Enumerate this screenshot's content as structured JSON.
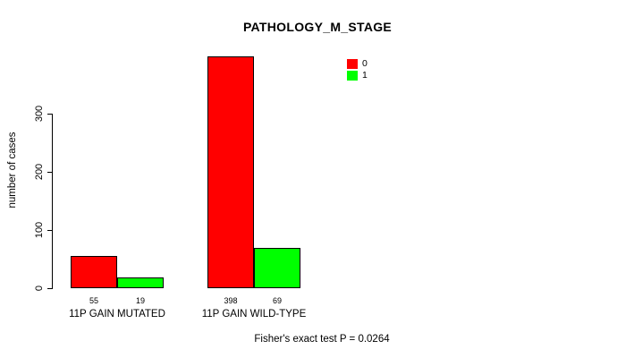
{
  "chart_data": {
    "type": "bar",
    "title": "PATHOLOGY_M_STAGE",
    "categories": [
      "11P GAIN MUTATED",
      "11P GAIN WILD-TYPE"
    ],
    "series": [
      {
        "name": "0",
        "color": "#ff0000",
        "values": [
          55,
          398
        ]
      },
      {
        "name": "1",
        "color": "#00ff00",
        "values": [
          19,
          69
        ]
      }
    ],
    "xlabel": "",
    "ylabel": "number of cases",
    "ylim": [
      0,
      300
    ],
    "yticks": [
      0,
      100,
      200,
      300
    ],
    "bar_count_labels": [
      [
        55,
        398
      ],
      [
        19,
        69
      ]
    ],
    "legend_position": "top-right",
    "grid": false,
    "annotation": "Fisher's exact test P = 0.0264"
  }
}
